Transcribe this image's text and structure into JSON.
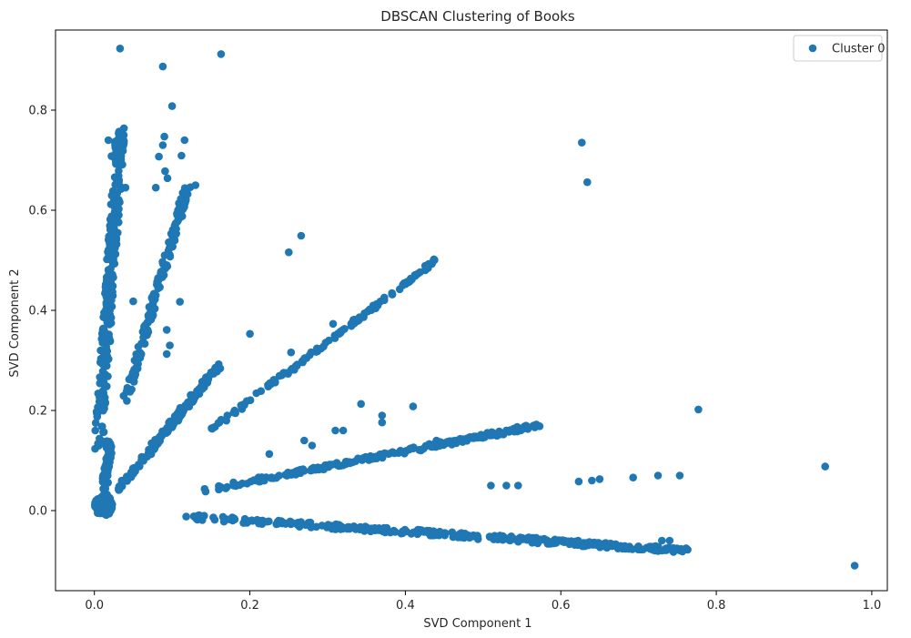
{
  "chart_data": {
    "type": "scatter",
    "title": "DBSCAN Clustering of Books",
    "xlabel": "SVD Component 1",
    "ylabel": "SVD Component 2",
    "xlim": [
      -0.05,
      1.02
    ],
    "ylim": [
      -0.16,
      0.96
    ],
    "xticks": [
      0.0,
      0.2,
      0.4,
      0.6,
      0.8,
      1.0
    ],
    "xtick_labels": [
      "0.0",
      "0.2",
      "0.4",
      "0.6",
      "0.8",
      "1.0"
    ],
    "yticks": [
      0.0,
      0.2,
      0.4,
      0.6,
      0.8
    ],
    "ytick_labels": [
      "0.0",
      "0.2",
      "0.4",
      "0.6",
      "0.8"
    ],
    "grid": false,
    "legend_position": "top-right",
    "color": "#1f77b4",
    "series": [
      {
        "name": "Cluster 0",
        "rays": [
          {
            "from": [
              0.005,
              0.12
            ],
            "to": [
              0.034,
              0.77
            ],
            "spread": 0.006,
            "count": 260
          },
          {
            "from": [
              0.01,
              0.0
            ],
            "to": [
              0.02,
              0.14
            ],
            "spread": 0.004,
            "count": 60
          },
          {
            "from": [
              0.04,
              0.22
            ],
            "to": [
              0.12,
              0.65
            ],
            "spread": 0.004,
            "count": 160
          },
          {
            "from": [
              0.03,
              0.04
            ],
            "to": [
              0.16,
              0.29
            ],
            "spread": 0.004,
            "count": 170
          },
          {
            "from": [
              0.14,
              0.15
            ],
            "to": [
              0.44,
              0.5
            ],
            "spread": 0.003,
            "count": 120
          },
          {
            "from": [
              0.14,
              0.04
            ],
            "to": [
              0.57,
              0.17
            ],
            "spread": 0.004,
            "count": 220
          },
          {
            "from": [
              0.1,
              -0.01
            ],
            "to": [
              0.76,
              -0.08
            ],
            "spread": 0.005,
            "count": 340
          }
        ],
        "cluster_core": {
          "center": [
            0.012,
            0.01
          ],
          "radius_x": 0.012,
          "radius_y": 0.02,
          "count": 120
        },
        "points": [
          [
            0.033,
            0.923
          ],
          [
            0.163,
            0.912
          ],
          [
            0.088,
            0.887
          ],
          [
            0.1,
            0.808
          ],
          [
            0.09,
            0.747
          ],
          [
            0.088,
            0.73
          ],
          [
            0.083,
            0.707
          ],
          [
            0.091,
            0.678
          ],
          [
            0.094,
            0.664
          ],
          [
            0.079,
            0.645
          ],
          [
            0.116,
            0.74
          ],
          [
            0.112,
            0.709
          ],
          [
            0.13,
            0.65
          ],
          [
            0.018,
            0.74
          ],
          [
            0.022,
            0.708
          ],
          [
            0.04,
            0.645
          ],
          [
            0.266,
            0.549
          ],
          [
            0.25,
            0.516
          ],
          [
            0.2,
            0.353
          ],
          [
            0.253,
            0.316
          ],
          [
            0.093,
            0.313
          ],
          [
            0.097,
            0.33
          ],
          [
            0.11,
            0.417
          ],
          [
            0.05,
            0.418
          ],
          [
            0.093,
            0.361
          ],
          [
            0.307,
            0.373
          ],
          [
            0.343,
            0.213
          ],
          [
            0.37,
            0.19
          ],
          [
            0.37,
            0.176
          ],
          [
            0.41,
            0.208
          ],
          [
            0.31,
            0.16
          ],
          [
            0.32,
            0.16
          ],
          [
            0.27,
            0.14
          ],
          [
            0.28,
            0.13
          ],
          [
            0.225,
            0.113
          ],
          [
            0.143,
            0.038
          ],
          [
            0.627,
            0.735
          ],
          [
            0.634,
            0.656
          ],
          [
            0.777,
            0.202
          ],
          [
            0.94,
            0.088
          ],
          [
            0.978,
            -0.11
          ],
          [
            0.53,
            0.16
          ],
          [
            0.565,
            0.17
          ],
          [
            0.51,
            0.05
          ],
          [
            0.53,
            0.05
          ],
          [
            0.545,
            0.05
          ],
          [
            0.623,
            0.058
          ],
          [
            0.64,
            0.06
          ],
          [
            0.65,
            0.063
          ],
          [
            0.693,
            0.066
          ],
          [
            0.725,
            0.07
          ],
          [
            0.753,
            0.07
          ],
          [
            0.73,
            -0.06
          ],
          [
            0.74,
            -0.06
          ],
          [
            0.73,
            -0.08
          ],
          [
            0.745,
            -0.075
          ],
          [
            0.757,
            -0.078
          ],
          [
            0.759,
            -0.078
          ],
          [
            0.42,
            0.12
          ],
          [
            0.44,
            0.14
          ]
        ]
      }
    ]
  }
}
